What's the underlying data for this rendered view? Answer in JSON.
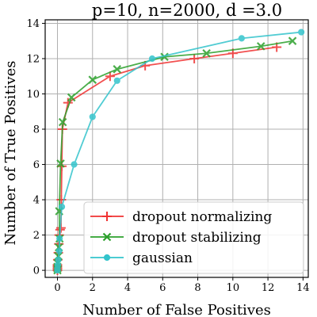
{
  "chart_data": {
    "type": "line",
    "title": "p=10, n=2000, d =3.0",
    "xlabel": "Number of False Positives",
    "ylabel": "Number of True Positives",
    "xlim": [
      -0.7,
      14.3
    ],
    "ylim": [
      -0.4,
      14.2
    ],
    "xticks": [
      0,
      2,
      4,
      6,
      8,
      10,
      12,
      14
    ],
    "yticks": [
      0,
      2,
      4,
      6,
      8,
      10,
      12,
      14
    ],
    "grid": true,
    "legend_position": "lower-right",
    "series": [
      {
        "name": "dropout normalizing",
        "color": "#f03232",
        "marker": "plus",
        "points": [
          [
            0.0,
            0.0
          ],
          [
            0.0,
            0.1
          ],
          [
            0.0,
            0.2
          ],
          [
            0.0,
            0.3
          ],
          [
            0.02,
            0.6
          ],
          [
            0.05,
            1.0
          ],
          [
            0.08,
            1.5
          ],
          [
            0.1,
            2.0
          ],
          [
            0.15,
            2.3
          ],
          [
            0.2,
            2.4
          ],
          [
            0.22,
            4.0
          ],
          [
            0.25,
            5.9
          ],
          [
            0.28,
            8.0
          ],
          [
            0.6,
            9.5
          ],
          [
            3.0,
            11.0
          ],
          [
            5.0,
            11.6
          ],
          [
            7.8,
            12.0
          ],
          [
            10.0,
            12.3
          ],
          [
            12.5,
            12.65
          ]
        ]
      },
      {
        "name": "dropout stabilizing",
        "color": "#2ca02c",
        "marker": "x",
        "points": [
          [
            0.0,
            0.0
          ],
          [
            0.0,
            0.1
          ],
          [
            0.0,
            0.2
          ],
          [
            0.02,
            0.4
          ],
          [
            0.05,
            0.8
          ],
          [
            0.08,
            1.3
          ],
          [
            0.12,
            1.8
          ],
          [
            0.1,
            3.35
          ],
          [
            0.18,
            6.05
          ],
          [
            0.3,
            8.4
          ],
          [
            0.8,
            9.8
          ],
          [
            2.0,
            10.8
          ],
          [
            3.4,
            11.4
          ],
          [
            6.1,
            12.1
          ],
          [
            8.5,
            12.3
          ],
          [
            11.6,
            12.7
          ],
          [
            13.4,
            13.0
          ]
        ]
      },
      {
        "name": "gaussian",
        "color": "#33c4cc",
        "marker": "dot",
        "points": [
          [
            0.0,
            0.0
          ],
          [
            0.0,
            0.1
          ],
          [
            0.02,
            0.3
          ],
          [
            0.05,
            0.6
          ],
          [
            0.1,
            1.1
          ],
          [
            0.12,
            1.8
          ],
          [
            0.25,
            3.6
          ],
          [
            0.95,
            6.0
          ],
          [
            2.0,
            8.7
          ],
          [
            3.4,
            10.75
          ],
          [
            5.4,
            12.0
          ],
          [
            10.5,
            13.15
          ],
          [
            13.9,
            13.5
          ]
        ]
      }
    ]
  }
}
